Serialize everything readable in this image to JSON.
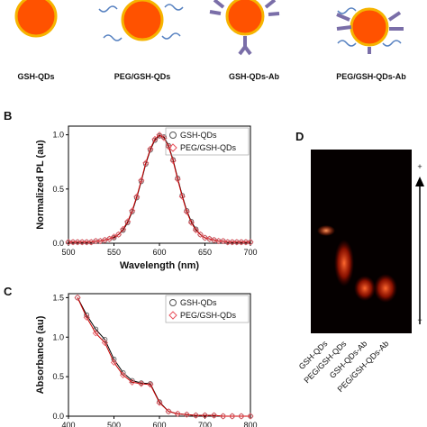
{
  "top_labels": [
    "GSH-QDs",
    "PEG/GSH-QDs",
    "GSH-QDs-Ab",
    "PEG/GSH-QDs-Ab"
  ],
  "panel_labels": [
    "B",
    "C",
    "D"
  ],
  "gel": {
    "lanes": [
      "GSH-QDs",
      "PEG/GSH-QDs",
      "GSH-QDs-Ab",
      "PEG/GSH-QDs-Ab"
    ],
    "polarity": [
      "+",
      "−"
    ]
  },
  "chart_data": [
    {
      "type": "line",
      "xlabel": "Wavelength (nm)",
      "ylabel": "Normalized PL (au)",
      "x": [
        500,
        505,
        510,
        515,
        520,
        525,
        530,
        535,
        540,
        545,
        550,
        555,
        560,
        565,
        570,
        575,
        580,
        585,
        590,
        595,
        600,
        605,
        610,
        615,
        620,
        625,
        630,
        635,
        640,
        645,
        650,
        655,
        660,
        665,
        670,
        675,
        680,
        685,
        690,
        695,
        700
      ],
      "series": [
        {
          "name": "GSH-QDs",
          "color": "#555555",
          "marker": "circle",
          "values": [
            0.01,
            0.01,
            0.01,
            0.01,
            0.01,
            0.01,
            0.02,
            0.02,
            0.03,
            0.04,
            0.05,
            0.08,
            0.12,
            0.19,
            0.29,
            0.42,
            0.57,
            0.73,
            0.86,
            0.95,
            0.99,
            0.98,
            0.9,
            0.77,
            0.6,
            0.44,
            0.3,
            0.2,
            0.13,
            0.08,
            0.05,
            0.04,
            0.03,
            0.02,
            0.02,
            0.01,
            0.01,
            0.01,
            0.01,
            0.01,
            0.01
          ]
        },
        {
          "name": "PEG/GSH-QDs",
          "color": "#e8505b",
          "marker": "diamond",
          "values": [
            0.01,
            0.01,
            0.01,
            0.01,
            0.01,
            0.01,
            0.02,
            0.02,
            0.03,
            0.04,
            0.06,
            0.08,
            0.13,
            0.2,
            0.3,
            0.43,
            0.58,
            0.74,
            0.87,
            0.96,
            1.0,
            0.97,
            0.89,
            0.76,
            0.59,
            0.43,
            0.29,
            0.19,
            0.12,
            0.08,
            0.05,
            0.04,
            0.03,
            0.02,
            0.02,
            0.01,
            0.01,
            0.01,
            0.01,
            0.01,
            0.01
          ]
        }
      ],
      "xlim": [
        500,
        700
      ],
      "xticks": [
        500,
        550,
        600,
        650,
        700
      ],
      "ylim": [
        0,
        1.08
      ],
      "yticks": [
        {
          "value": 0,
          "label": "0.0"
        },
        {
          "value": 0.5,
          "label": "0.5"
        },
        {
          "value": 1,
          "label": "1.0"
        }
      ]
    },
    {
      "type": "line",
      "xlabel": "Wavelength (nm)",
      "ylabel": "Absorbance (au)",
      "x": [
        420,
        440,
        460,
        480,
        500,
        520,
        540,
        560,
        580,
        600,
        620,
        640,
        660,
        680,
        700,
        720,
        740,
        760,
        780,
        800
      ],
      "series": [
        {
          "name": "GSH-QDs",
          "color": "#555555",
          "marker": "circle",
          "values": [
            1.5,
            1.28,
            1.1,
            0.97,
            0.72,
            0.55,
            0.45,
            0.42,
            0.41,
            0.18,
            0.06,
            0.03,
            0.02,
            0.01,
            0.01,
            0.01,
            0,
            0,
            0,
            0
          ]
        },
        {
          "name": "PEG/GSH-QDs",
          "color": "#e8505b",
          "marker": "diamond",
          "values": [
            1.5,
            1.25,
            1.05,
            0.93,
            0.68,
            0.52,
            0.43,
            0.41,
            0.4,
            0.17,
            0.06,
            0.03,
            0.02,
            0.01,
            0.01,
            0.01,
            0,
            0,
            0,
            0
          ]
        }
      ],
      "xlim": [
        400,
        800
      ],
      "xticks": [
        400,
        500,
        600,
        700,
        800
      ],
      "ylim": [
        0,
        1.55
      ],
      "yticks": [
        {
          "value": 0,
          "label": "0.0"
        },
        {
          "value": 0.5,
          "label": "0.5"
        },
        {
          "value": 1,
          "label": "1.0"
        },
        {
          "value": 1.5,
          "label": "1.5"
        }
      ]
    }
  ]
}
